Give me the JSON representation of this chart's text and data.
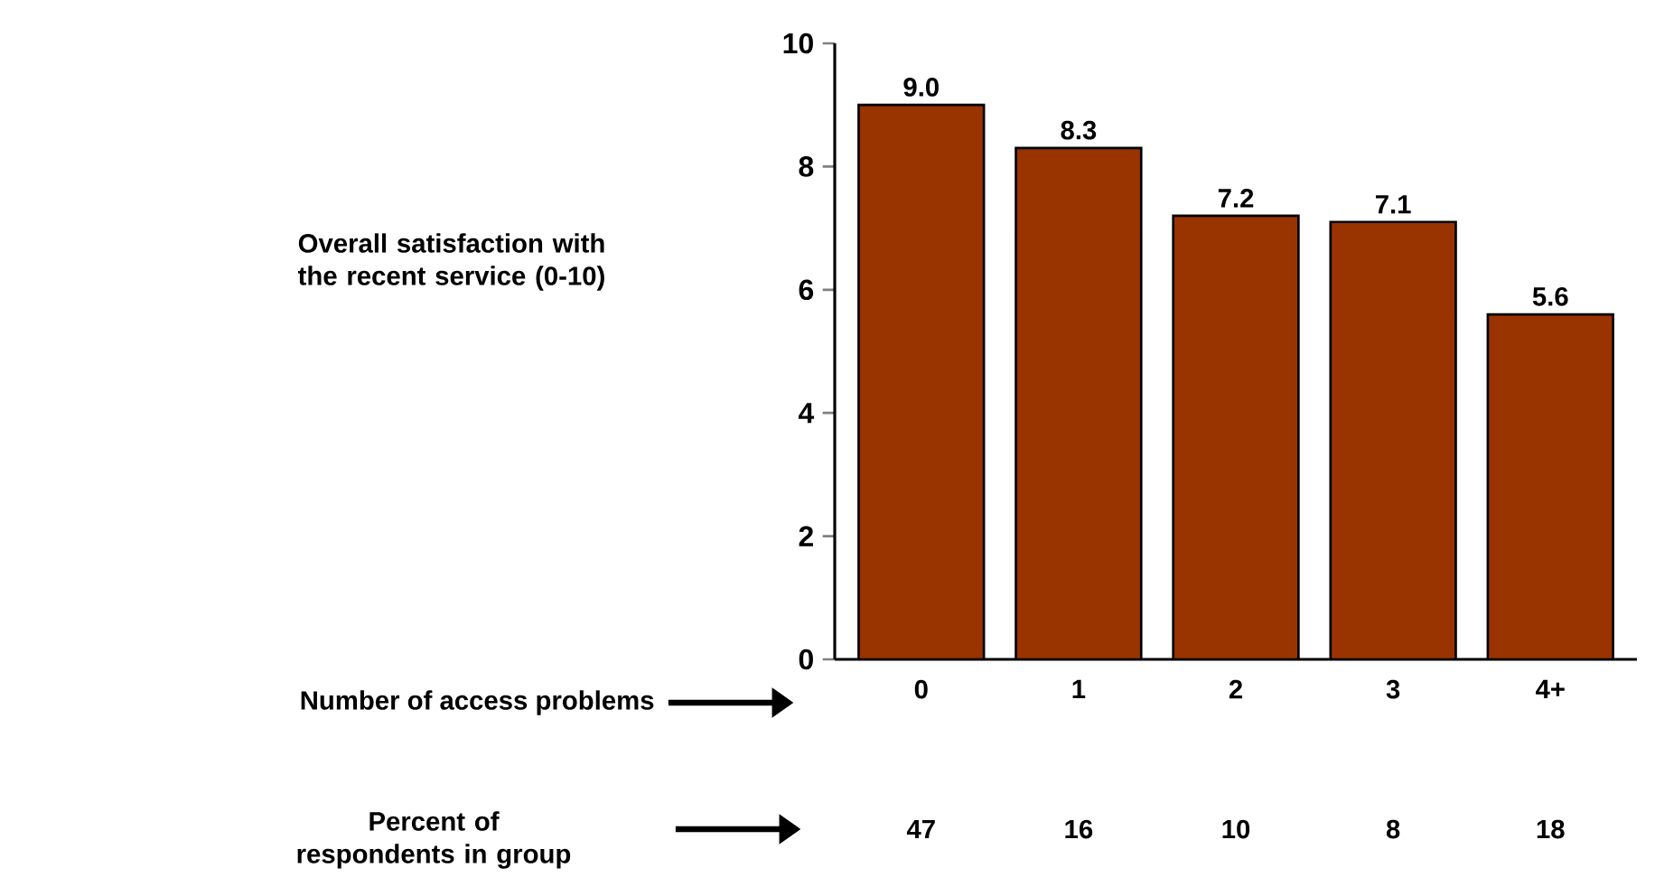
{
  "chart_data": {
    "type": "bar",
    "xlabel": "Number of access problems",
    "categories": [
      "0",
      "1",
      "2",
      "3",
      "4+"
    ],
    "values": [
      9.0,
      8.3,
      7.2,
      7.1,
      5.6
    ],
    "value_labels": [
      "9.0",
      "8.3",
      "7.2",
      "7.1",
      "5.6"
    ],
    "color": "#993300",
    "ylim": [
      0,
      10
    ],
    "yticks": [
      0,
      2,
      4,
      6,
      8,
      10
    ],
    "grid": false,
    "annotations": [
      "Overall satisfaction with the recent service (0-10)",
      "Percent of respondents in group",
      "47",
      "16",
      "10",
      "8",
      "18"
    ]
  }
}
